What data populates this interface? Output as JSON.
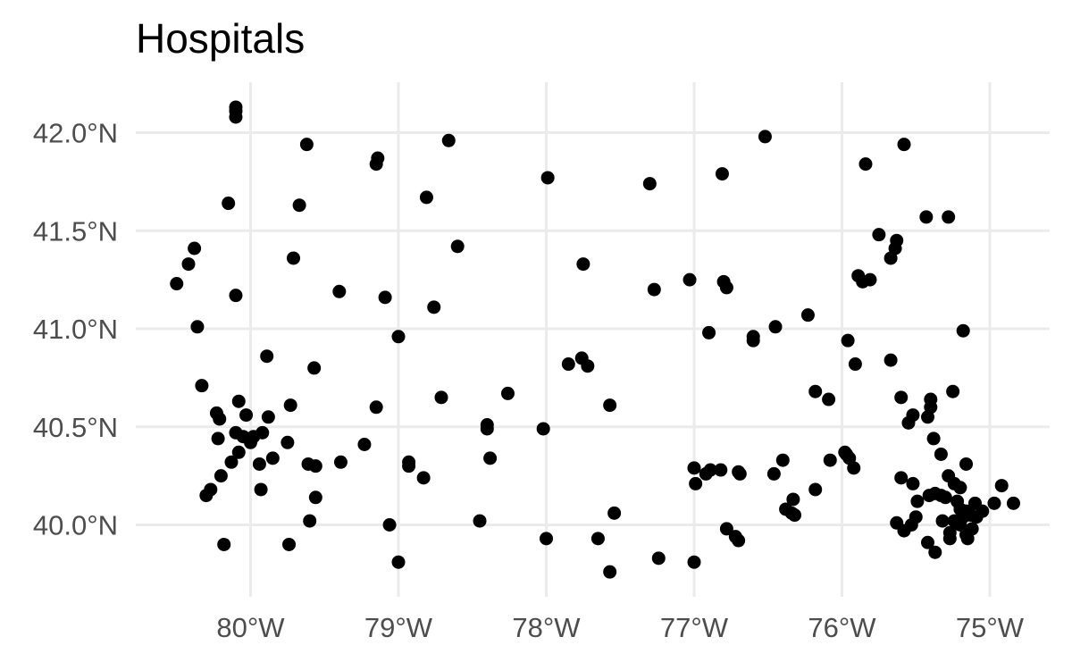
{
  "chart_data": {
    "type": "scatter",
    "title": "Hospitals",
    "xlabel": "",
    "ylabel": "",
    "xlim": [
      -80.6,
      -74.8
    ],
    "ylim": [
      39.75,
      42.2
    ],
    "grid": true,
    "legend": "none",
    "x_ticks": [
      {
        "value": -80,
        "label": "80°W"
      },
      {
        "value": -79,
        "label": "79°W"
      },
      {
        "value": -78,
        "label": "78°W"
      },
      {
        "value": -77,
        "label": "77°W"
      },
      {
        "value": -76,
        "label": "76°W"
      },
      {
        "value": -75,
        "label": "75°W"
      }
    ],
    "y_ticks": [
      {
        "value": 40.0,
        "label": "40.0°N"
      },
      {
        "value": 40.5,
        "label": "40.5°N"
      },
      {
        "value": 41.0,
        "label": "41.0°N"
      },
      {
        "value": 41.5,
        "label": "41.5°N"
      },
      {
        "value": 42.0,
        "label": "42.0°N"
      }
    ],
    "point_color": "#000000",
    "points": [
      [
        -80.1,
        42.13
      ],
      [
        -80.1,
        42.11
      ],
      [
        -80.1,
        42.08
      ],
      [
        -79.62,
        41.94
      ],
      [
        -78.66,
        41.96
      ],
      [
        -79.14,
        41.87
      ],
      [
        -79.15,
        41.84
      ],
      [
        -80.15,
        41.64
      ],
      [
        -79.67,
        41.63
      ],
      [
        -78.81,
        41.67
      ],
      [
        -78.6,
        41.42
      ],
      [
        -80.38,
        41.41
      ],
      [
        -80.42,
        41.33
      ],
      [
        -80.5,
        41.23
      ],
      [
        -79.71,
        41.36
      ],
      [
        -80.1,
        41.17
      ],
      [
        -79.4,
        41.19
      ],
      [
        -79.09,
        41.16
      ],
      [
        -78.76,
        41.11
      ],
      [
        -80.36,
        41.01
      ],
      [
        -79.0,
        40.96
      ],
      [
        -80.33,
        40.71
      ],
      [
        -79.89,
        40.86
      ],
      [
        -79.57,
        40.8
      ],
      [
        -78.71,
        40.65
      ],
      [
        -78.26,
        40.67
      ],
      [
        -80.08,
        40.63
      ],
      [
        -80.23,
        40.57
      ],
      [
        -80.03,
        40.56
      ],
      [
        -79.88,
        40.55
      ],
      [
        -80.21,
        40.54
      ],
      [
        -80.1,
        40.47
      ],
      [
        -80.05,
        40.45
      ],
      [
        -79.98,
        40.45
      ],
      [
        -79.92,
        40.47
      ],
      [
        -80.0,
        40.42
      ],
      [
        -80.22,
        40.44
      ],
      [
        -79.75,
        40.42
      ],
      [
        -79.73,
        40.61
      ],
      [
        -79.15,
        40.6
      ],
      [
        -79.23,
        40.41
      ],
      [
        -78.4,
        40.51
      ],
      [
        -78.4,
        40.49
      ],
      [
        -78.02,
        40.49
      ],
      [
        -80.08,
        40.37
      ],
      [
        -79.85,
        40.34
      ],
      [
        -79.94,
        40.31
      ],
      [
        -80.13,
        40.32
      ],
      [
        -79.61,
        40.31
      ],
      [
        -79.56,
        40.3
      ],
      [
        -79.39,
        40.32
      ],
      [
        -78.93,
        40.32
      ],
      [
        -78.93,
        40.3
      ],
      [
        -78.83,
        40.24
      ],
      [
        -78.38,
        40.34
      ],
      [
        -80.2,
        40.25
      ],
      [
        -80.27,
        40.18
      ],
      [
        -80.3,
        40.15
      ],
      [
        -79.93,
        40.18
      ],
      [
        -79.56,
        40.14
      ],
      [
        -79.6,
        40.02
      ],
      [
        -79.06,
        40.0
      ],
      [
        -79.0,
        39.81
      ],
      [
        -78.45,
        40.02
      ],
      [
        -78.0,
        39.93
      ],
      [
        -80.18,
        39.9
      ],
      [
        -79.74,
        39.9
      ],
      [
        -77.99,
        41.77
      ],
      [
        -77.3,
        41.74
      ],
      [
        -76.81,
        41.79
      ],
      [
        -76.52,
        41.98
      ],
      [
        -77.75,
        41.33
      ],
      [
        -77.27,
        41.2
      ],
      [
        -77.03,
        41.25
      ],
      [
        -76.8,
        41.24
      ],
      [
        -76.78,
        41.21
      ],
      [
        -76.9,
        40.98
      ],
      [
        -76.6,
        40.96
      ],
      [
        -76.6,
        40.94
      ],
      [
        -76.45,
        41.01
      ],
      [
        -76.23,
        41.07
      ],
      [
        -77.85,
        40.82
      ],
      [
        -77.76,
        40.85
      ],
      [
        -77.72,
        40.81
      ],
      [
        -77.57,
        40.61
      ],
      [
        -76.18,
        40.68
      ],
      [
        -76.09,
        40.64
      ],
      [
        -77.0,
        40.29
      ],
      [
        -76.99,
        40.21
      ],
      [
        -76.92,
        40.26
      ],
      [
        -76.89,
        40.28
      ],
      [
        -76.82,
        40.28
      ],
      [
        -76.7,
        40.27
      ],
      [
        -76.69,
        40.26
      ],
      [
        -76.46,
        40.26
      ],
      [
        -76.4,
        40.33
      ],
      [
        -76.08,
        40.33
      ],
      [
        -76.18,
        40.18
      ],
      [
        -76.38,
        40.08
      ],
      [
        -76.34,
        40.06
      ],
      [
        -76.32,
        40.05
      ],
      [
        -76.33,
        40.13
      ],
      [
        -76.78,
        39.98
      ],
      [
        -76.72,
        39.94
      ],
      [
        -76.7,
        39.92
      ],
      [
        -77.54,
        40.06
      ],
      [
        -77.65,
        39.93
      ],
      [
        -77.24,
        39.83
      ],
      [
        -77.0,
        39.81
      ],
      [
        -77.57,
        39.76
      ],
      [
        -75.58,
        41.94
      ],
      [
        -75.84,
        41.84
      ],
      [
        -75.43,
        41.57
      ],
      [
        -75.28,
        41.57
      ],
      [
        -75.75,
        41.48
      ],
      [
        -75.63,
        41.45
      ],
      [
        -75.64,
        41.41
      ],
      [
        -75.67,
        41.36
      ],
      [
        -75.89,
        41.27
      ],
      [
        -75.86,
        41.24
      ],
      [
        -75.81,
        41.25
      ],
      [
        -75.18,
        40.99
      ],
      [
        -75.96,
        40.94
      ],
      [
        -75.91,
        40.82
      ],
      [
        -75.67,
        40.84
      ],
      [
        -75.6,
        40.65
      ],
      [
        -75.4,
        40.64
      ],
      [
        -75.4,
        40.6
      ],
      [
        -75.52,
        40.56
      ],
      [
        -75.55,
        40.52
      ],
      [
        -75.42,
        40.55
      ],
      [
        -75.25,
        40.68
      ],
      [
        -75.38,
        40.44
      ],
      [
        -75.33,
        40.36
      ],
      [
        -75.16,
        40.31
      ],
      [
        -75.28,
        40.25
      ],
      [
        -75.2,
        40.19
      ],
      [
        -75.24,
        40.21
      ],
      [
        -75.6,
        40.24
      ],
      [
        -75.52,
        40.21
      ],
      [
        -75.98,
        40.37
      ],
      [
        -75.95,
        40.34
      ],
      [
        -75.92,
        40.29
      ],
      [
        -75.97,
        40.36
      ],
      [
        -75.41,
        40.15
      ],
      [
        -75.37,
        40.16
      ],
      [
        -75.33,
        40.15
      ],
      [
        -75.3,
        40.14
      ],
      [
        -75.49,
        40.12
      ],
      [
        -75.22,
        40.12
      ],
      [
        -75.2,
        40.08
      ],
      [
        -75.16,
        40.07
      ],
      [
        -75.13,
        40.05
      ],
      [
        -75.1,
        40.11
      ],
      [
        -75.05,
        40.07
      ],
      [
        -74.97,
        40.11
      ],
      [
        -74.92,
        40.2
      ],
      [
        -74.84,
        40.11
      ],
      [
        -75.18,
        40.04
      ],
      [
        -75.2,
        40.0
      ],
      [
        -75.24,
        40.02
      ],
      [
        -75.32,
        40.02
      ],
      [
        -75.5,
        40.04
      ],
      [
        -75.53,
        40.0
      ],
      [
        -75.63,
        40.01
      ],
      [
        -75.58,
        39.97
      ],
      [
        -75.42,
        39.91
      ],
      [
        -75.37,
        39.86
      ],
      [
        -75.27,
        39.93
      ],
      [
        -75.16,
        39.95
      ],
      [
        -75.12,
        39.98
      ],
      [
        -75.27,
        39.96
      ],
      [
        -75.09,
        40.04
      ],
      [
        -75.15,
        39.93
      ]
    ]
  }
}
